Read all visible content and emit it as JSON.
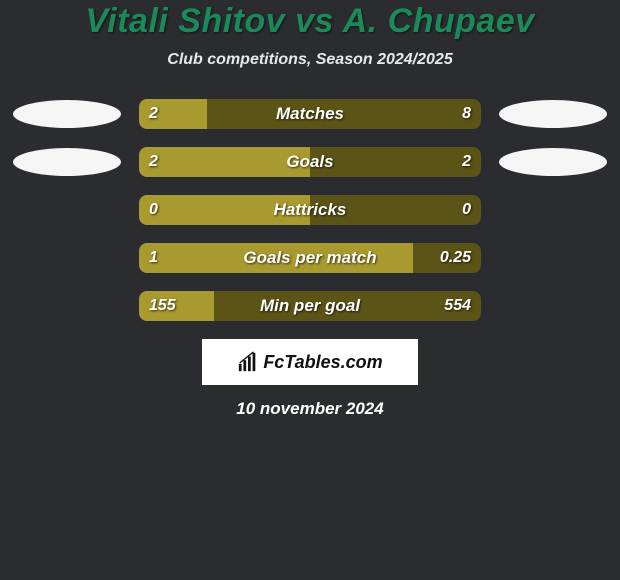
{
  "title": "Vitali Shitov vs A. Chupaev",
  "subtitle": "Club competitions, Season 2024/2025",
  "colors": {
    "left": "#a99a2f",
    "right": "#5c5416",
    "background": "#2a2c30",
    "title": "#1a8a5a",
    "ellipse": "#f5f5f5",
    "logo_box": "#ffffff"
  },
  "rows": [
    {
      "label": "Matches",
      "left_val": "2",
      "right_val": "8",
      "left_pct": 20,
      "right_pct": 80,
      "show_ellipses": true
    },
    {
      "label": "Goals",
      "left_val": "2",
      "right_val": "2",
      "left_pct": 50,
      "right_pct": 50,
      "show_ellipses": true
    },
    {
      "label": "Hattricks",
      "left_val": "0",
      "right_val": "0",
      "left_pct": 50,
      "right_pct": 50,
      "show_ellipses": false
    },
    {
      "label": "Goals per match",
      "left_val": "1",
      "right_val": "0.25",
      "left_pct": 80,
      "right_pct": 20,
      "show_ellipses": false
    },
    {
      "label": "Min per goal",
      "left_val": "155",
      "right_val": "554",
      "left_pct": 22,
      "right_pct": 78,
      "show_ellipses": false
    }
  ],
  "logo": {
    "text": "FcTables.com"
  },
  "date": "10 november 2024"
}
